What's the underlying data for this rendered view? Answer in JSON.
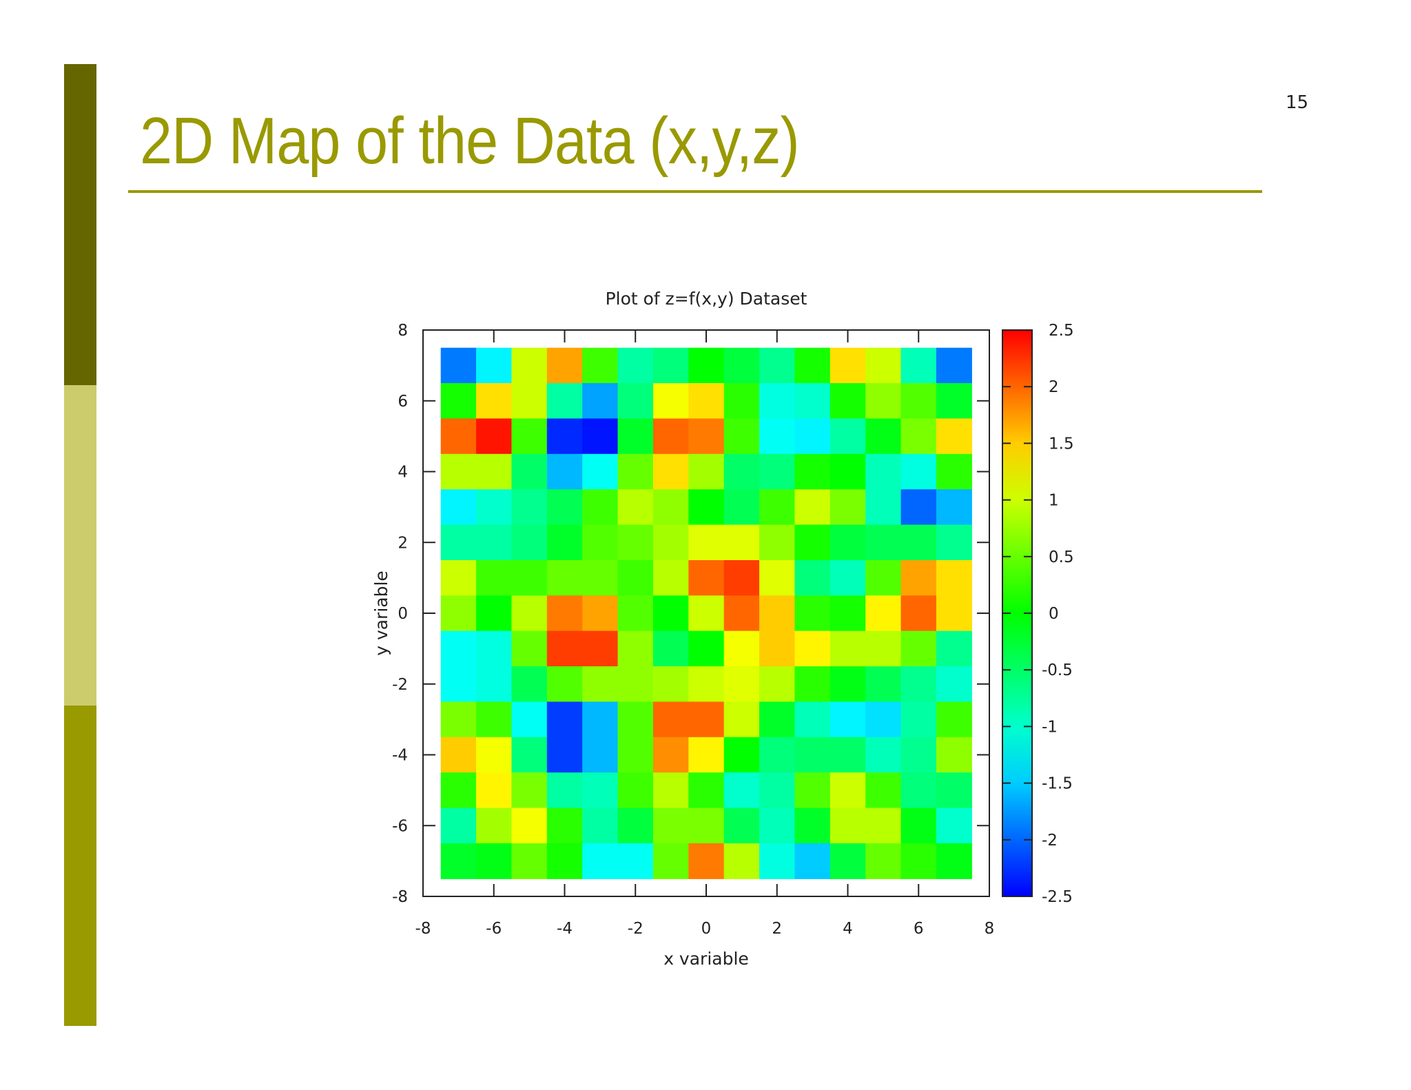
{
  "slide": {
    "title": "2D Map of the Data (x,y,z)",
    "page_number": "15",
    "colors": {
      "accent": "#999900",
      "bar_dark": "#666600",
      "bar_light": "#cccc6d"
    }
  },
  "chart_data": {
    "type": "heatmap",
    "title": "Plot of z=f(x,y) Dataset",
    "xlabel": "x variable",
    "ylabel": "y variable",
    "xlim": [
      -8,
      8
    ],
    "ylim": [
      -8,
      8
    ],
    "x_ticks": [
      "-8",
      "-6",
      "-4",
      "-2",
      "0",
      "2",
      "4",
      "6",
      "8"
    ],
    "y_ticks": [
      "8",
      "6",
      "4",
      "2",
      "0",
      "-2",
      "-4",
      "-6",
      "-8"
    ],
    "colorbar": {
      "range": [
        -2.5,
        2.5
      ],
      "ticks": [
        "2.5",
        "2",
        "1.5",
        "1",
        "0.5",
        "0",
        "-0.5",
        "-1",
        "-1.5",
        "-2",
        "-2.5"
      ],
      "colormap": "rainbow"
    },
    "x_centers": [
      -7,
      -6,
      -5,
      -4,
      -3,
      -2,
      -1,
      0,
      1,
      2,
      3,
      4,
      5,
      6,
      7
    ],
    "y_centers": [
      7,
      6,
      5,
      4,
      3,
      2,
      1,
      0,
      -1,
      -2,
      -3,
      -4,
      -5,
      -6,
      -7
    ],
    "z": [
      [
        -1.9,
        -1.3,
        1.0,
        1.7,
        0.3,
        -0.8,
        -0.6,
        0.0,
        -0.3,
        -0.7,
        0.1,
        1.4,
        1.0,
        -0.9,
        -1.9
      ],
      [
        0.1,
        1.4,
        1.0,
        -0.8,
        -1.7,
        -0.6,
        1.2,
        1.4,
        0.2,
        -1.1,
        -1.0,
        0.1,
        0.7,
        0.4,
        -0.2
      ],
      [
        2.0,
        2.4,
        0.3,
        -2.3,
        -2.4,
        -0.2,
        2.0,
        1.9,
        0.3,
        -1.2,
        -1.3,
        -0.8,
        -0.1,
        0.6,
        1.4
      ],
      [
        0.9,
        0.9,
        -0.5,
        -1.6,
        -1.2,
        0.5,
        1.4,
        0.8,
        -0.5,
        -0.6,
        0.1,
        0.0,
        -0.9,
        -1.1,
        0.2
      ],
      [
        -1.3,
        -1.0,
        -0.7,
        -0.4,
        0.3,
        0.9,
        0.7,
        0.0,
        -0.4,
        0.3,
        1.0,
        0.6,
        -0.9,
        -2.0,
        -1.6
      ],
      [
        -0.8,
        -0.8,
        -0.6,
        -0.2,
        0.4,
        0.5,
        0.8,
        1.1,
        1.1,
        0.7,
        0.1,
        -0.3,
        -0.4,
        -0.4,
        -0.7
      ],
      [
        1.0,
        0.3,
        0.3,
        0.5,
        0.5,
        0.3,
        0.9,
        2.0,
        2.2,
        1.1,
        -0.6,
        -0.9,
        0.4,
        1.7,
        1.4
      ],
      [
        0.7,
        0.0,
        0.9,
        1.9,
        1.7,
        0.4,
        0.0,
        1.0,
        2.0,
        1.5,
        0.2,
        0.1,
        1.3,
        2.0,
        1.4
      ],
      [
        -1.2,
        -1.1,
        0.5,
        2.2,
        2.2,
        0.7,
        -0.4,
        0.0,
        1.2,
        1.5,
        1.3,
        0.9,
        0.9,
        0.5,
        -0.7
      ],
      [
        -1.2,
        -1.1,
        -0.4,
        0.4,
        0.7,
        0.7,
        0.8,
        1.0,
        1.1,
        0.9,
        0.2,
        -0.1,
        -0.4,
        -0.7,
        -1.0
      ],
      [
        0.6,
        0.3,
        -1.2,
        -2.2,
        -1.6,
        0.4,
        2.0,
        2.0,
        1.0,
        -0.2,
        -0.9,
        -1.3,
        -1.4,
        -0.8,
        0.3
      ],
      [
        1.5,
        1.2,
        -0.6,
        -2.2,
        -1.6,
        0.4,
        1.8,
        1.3,
        0.0,
        -0.6,
        -0.5,
        -0.5,
        -0.9,
        -0.7,
        0.7
      ],
      [
        0.2,
        1.3,
        0.6,
        -0.8,
        -0.9,
        0.3,
        0.9,
        0.2,
        -1.0,
        -0.8,
        0.4,
        1.0,
        0.3,
        -0.6,
        -0.5
      ],
      [
        -0.8,
        0.8,
        1.2,
        0.2,
        -0.8,
        -0.3,
        0.6,
        0.6,
        -0.4,
        -0.9,
        -0.2,
        0.9,
        0.9,
        -0.1,
        -1.0
      ],
      [
        -0.2,
        -0.1,
        0.5,
        0.1,
        -1.2,
        -1.2,
        0.5,
        1.9,
        0.9,
        -1.1,
        -1.5,
        -0.3,
        0.5,
        0.2,
        -0.1
      ]
    ]
  }
}
